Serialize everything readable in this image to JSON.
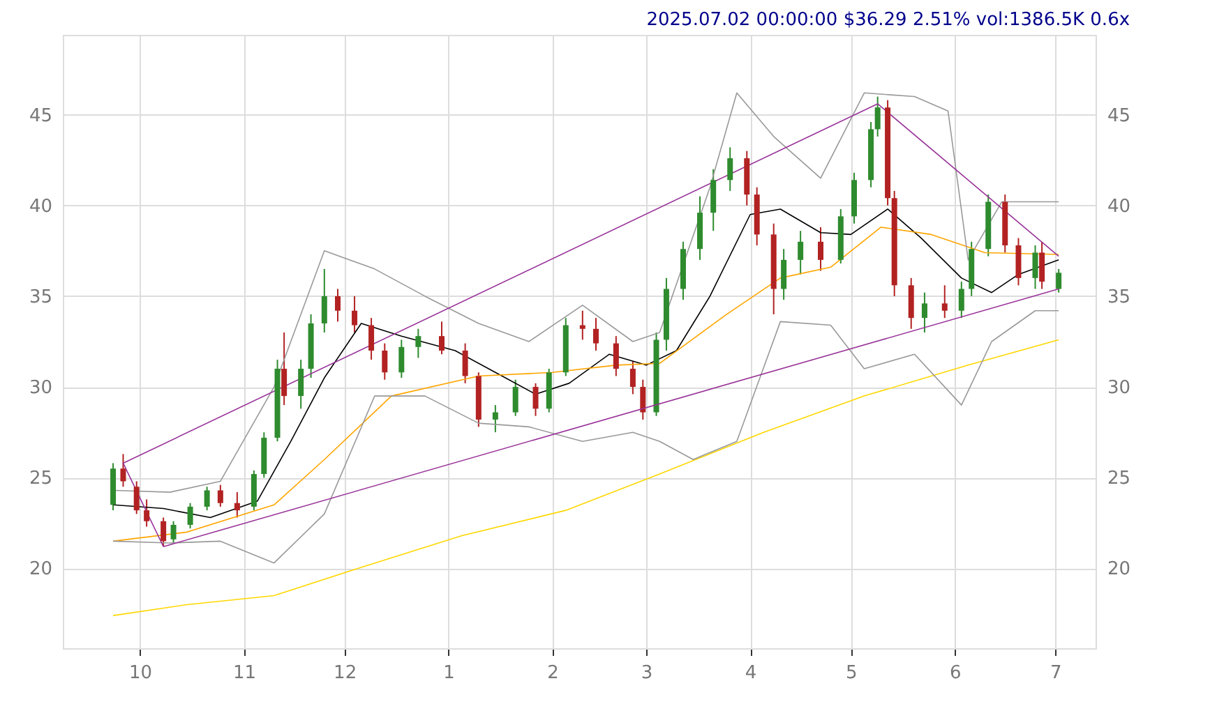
{
  "chart_data": {
    "type": "candlestick",
    "title": "2025.07.02 00:00:00 $36.29 2.51% vol:1386.5K 0.6x",
    "x": [
      "2024-09-23",
      "2024-09-26",
      "2024-09-30",
      "2024-10-03",
      "2024-10-08",
      "2024-10-11",
      "2024-10-16",
      "2024-10-21",
      "2024-10-25",
      "2024-10-30",
      "2024-11-04",
      "2024-11-07",
      "2024-11-11",
      "2024-11-13",
      "2024-11-18",
      "2024-11-21",
      "2024-11-25",
      "2024-11-29",
      "2024-12-04",
      "2024-12-09",
      "2024-12-13",
      "2024-12-18",
      "2024-12-23",
      "2024-12-30",
      "2025-01-06",
      "2025-01-10",
      "2025-01-15",
      "2025-01-21",
      "2025-01-27",
      "2025-01-31",
      "2025-02-05",
      "2025-02-10",
      "2025-02-14",
      "2025-02-20",
      "2025-02-25",
      "2025-02-28",
      "2025-03-04",
      "2025-03-07",
      "2025-03-12",
      "2025-03-17",
      "2025-03-21",
      "2025-03-26",
      "2025-03-31",
      "2025-04-03",
      "2025-04-08",
      "2025-04-11",
      "2025-04-16",
      "2025-04-22",
      "2025-04-28",
      "2025-05-02",
      "2025-05-07",
      "2025-05-09",
      "2025-05-12",
      "2025-05-14",
      "2025-05-19",
      "2025-05-23",
      "2025-05-29",
      "2025-06-03",
      "2025-06-06",
      "2025-06-11",
      "2025-06-16",
      "2025-06-20",
      "2025-06-25",
      "2025-06-27",
      "2025-07-02"
    ],
    "ohlc": [
      [
        23.5,
        25.8,
        23.2,
        25.5
      ],
      [
        25.5,
        26.3,
        24.5,
        24.8
      ],
      [
        24.5,
        24.8,
        23.0,
        23.2
      ],
      [
        23.2,
        23.8,
        22.3,
        22.6
      ],
      [
        22.6,
        22.8,
        21.2,
        21.5
      ],
      [
        21.6,
        22.6,
        21.4,
        22.4
      ],
      [
        22.4,
        23.6,
        22.2,
        23.4
      ],
      [
        23.4,
        24.5,
        23.2,
        24.3
      ],
      [
        24.3,
        24.6,
        23.4,
        23.6
      ],
      [
        23.6,
        24.2,
        22.8,
        23.2
      ],
      [
        23.4,
        25.4,
        23.2,
        25.2
      ],
      [
        25.2,
        27.5,
        25.0,
        27.2
      ],
      [
        27.2,
        31.5,
        27.0,
        31.0
      ],
      [
        31.0,
        33.0,
        29.0,
        29.5
      ],
      [
        29.5,
        31.5,
        28.8,
        31.0
      ],
      [
        31.0,
        34.0,
        30.5,
        33.5
      ],
      [
        33.5,
        36.5,
        33.0,
        35.0
      ],
      [
        35.0,
        35.4,
        33.6,
        34.2
      ],
      [
        34.2,
        35.0,
        33.0,
        33.4
      ],
      [
        33.4,
        33.8,
        31.5,
        32.0
      ],
      [
        32.0,
        32.4,
        30.4,
        30.8
      ],
      [
        30.8,
        32.6,
        30.5,
        32.2
      ],
      [
        32.2,
        33.2,
        31.6,
        32.8
      ],
      [
        32.8,
        33.6,
        31.8,
        32.0
      ],
      [
        32.0,
        32.4,
        30.2,
        30.6
      ],
      [
        30.6,
        30.8,
        27.8,
        28.2
      ],
      [
        28.2,
        29.0,
        27.5,
        28.6
      ],
      [
        28.6,
        30.4,
        28.4,
        30.0
      ],
      [
        30.0,
        30.2,
        28.4,
        28.8
      ],
      [
        28.8,
        31.0,
        28.6,
        30.8
      ],
      [
        30.8,
        33.8,
        30.6,
        33.4
      ],
      [
        33.4,
        34.2,
        32.6,
        33.2
      ],
      [
        33.2,
        33.8,
        32.0,
        32.4
      ],
      [
        32.4,
        32.8,
        30.6,
        31.0
      ],
      [
        31.0,
        31.4,
        29.6,
        30.0
      ],
      [
        30.0,
        30.4,
        28.2,
        28.6
      ],
      [
        28.6,
        33.0,
        28.4,
        32.6
      ],
      [
        32.6,
        36.0,
        32.0,
        35.4
      ],
      [
        35.4,
        38.0,
        34.8,
        37.6
      ],
      [
        37.6,
        40.5,
        37.0,
        39.6
      ],
      [
        39.6,
        42.0,
        38.6,
        41.4
      ],
      [
        41.4,
        43.2,
        40.8,
        42.6
      ],
      [
        42.6,
        43.0,
        40.0,
        40.6
      ],
      [
        40.6,
        41.0,
        37.8,
        38.4
      ],
      [
        38.4,
        39.0,
        34.0,
        35.4
      ],
      [
        35.4,
        37.6,
        34.8,
        37.0
      ],
      [
        37.0,
        38.6,
        36.2,
        38.0
      ],
      [
        38.0,
        38.8,
        36.4,
        37.0
      ],
      [
        37.0,
        39.8,
        36.8,
        39.4
      ],
      [
        39.4,
        41.8,
        39.0,
        41.4
      ],
      [
        41.4,
        44.6,
        41.0,
        44.2
      ],
      [
        44.2,
        46.0,
        43.8,
        45.4
      ],
      [
        45.4,
        45.8,
        40.0,
        40.4
      ],
      [
        40.4,
        40.8,
        35.0,
        35.6
      ],
      [
        35.6,
        36.0,
        33.2,
        33.8
      ],
      [
        33.8,
        35.2,
        33.0,
        34.6
      ],
      [
        34.6,
        35.6,
        33.8,
        34.2
      ],
      [
        34.2,
        35.8,
        33.8,
        35.4
      ],
      [
        35.4,
        38.0,
        35.0,
        37.6
      ],
      [
        37.6,
        40.6,
        37.2,
        40.2
      ],
      [
        40.2,
        40.6,
        37.4,
        37.8
      ],
      [
        37.8,
        38.2,
        35.6,
        36.0
      ],
      [
        36.0,
        37.8,
        35.4,
        37.4
      ],
      [
        37.4,
        38.0,
        35.4,
        35.8
      ],
      [
        35.4,
        36.5,
        35.2,
        36.29
      ]
    ],
    "series": [
      {
        "type": "line",
        "color": "#000000",
        "x": [
          "2024-09-23",
          "2024-10-08",
          "2024-10-22",
          "2024-11-05",
          "2024-11-15",
          "2024-11-25",
          "2024-12-06",
          "2024-12-18",
          "2025-01-03",
          "2025-01-15",
          "2025-01-27",
          "2025-02-06",
          "2025-02-18",
          "2025-03-01",
          "2025-03-10",
          "2025-03-20",
          "2025-04-01",
          "2025-04-10",
          "2025-04-22",
          "2025-05-01",
          "2025-05-12",
          "2025-05-22",
          "2025-06-03",
          "2025-06-12",
          "2025-06-20",
          "2025-07-02"
        ],
        "values": [
          23.5,
          23.3,
          22.8,
          23.7,
          27,
          30.5,
          33.5,
          32.8,
          32,
          30.8,
          29.6,
          30.2,
          31.8,
          31.2,
          32,
          35,
          39.5,
          39.8,
          38.5,
          38.4,
          39.8,
          38.2,
          36,
          35.2,
          36.2,
          37.0
        ]
      },
      {
        "type": "line",
        "color": "#ffa500",
        "x": [
          "2024-09-23",
          "2024-10-15",
          "2024-11-10",
          "2024-11-25",
          "2024-12-15",
          "2025-01-10",
          "2025-02-01",
          "2025-02-20",
          "2025-03-05",
          "2025-03-25",
          "2025-04-10",
          "2025-04-25",
          "2025-05-10",
          "2025-05-25",
          "2025-06-10",
          "2025-07-02"
        ],
        "values": [
          21.5,
          22,
          23.5,
          26,
          29.5,
          30.6,
          30.8,
          31.2,
          31.3,
          34,
          36,
          36.6,
          38.8,
          38.4,
          37.4,
          37.3
        ]
      },
      {
        "type": "line",
        "color": "#ffd700",
        "x": [
          "2024-09-23",
          "2024-10-15",
          "2024-11-10",
          "2024-12-05",
          "2025-01-05",
          "2025-02-05",
          "2025-03-05",
          "2025-04-05",
          "2025-05-05",
          "2025-06-05",
          "2025-07-02"
        ],
        "values": [
          17.4,
          18,
          18.5,
          20,
          21.8,
          23.2,
          25.2,
          27.5,
          29.5,
          31.2,
          32.6
        ]
      },
      {
        "type": "line",
        "color": "#999999",
        "x": [
          "2024-09-23",
          "2024-10-10",
          "2024-10-25",
          "2024-11-10",
          "2024-11-25",
          "2024-12-10",
          "2024-12-25",
          "2025-01-10",
          "2025-01-25",
          "2025-02-10",
          "2025-02-25",
          "2025-03-05",
          "2025-03-20",
          "2025-03-28",
          "2025-04-08",
          "2025-04-22",
          "2025-05-05",
          "2025-05-20",
          "2025-05-30",
          "2025-06-05",
          "2025-06-15",
          "2025-07-02"
        ],
        "values": [
          24.3,
          24.2,
          24.8,
          30,
          37.5,
          36.5,
          35,
          33.5,
          32.5,
          34.5,
          32.5,
          33,
          41,
          46.2,
          43.8,
          41.5,
          46.2,
          46,
          45.2,
          37,
          40.2,
          40.2
        ]
      },
      {
        "type": "line",
        "color": "#999999",
        "x": [
          "2024-09-23",
          "2024-10-10",
          "2024-10-25",
          "2024-11-10",
          "2024-11-25",
          "2024-12-10",
          "2024-12-25",
          "2025-01-10",
          "2025-01-25",
          "2025-02-10",
          "2025-02-25",
          "2025-03-05",
          "2025-03-15",
          "2025-03-28",
          "2025-04-10",
          "2025-04-25",
          "2025-05-05",
          "2025-05-20",
          "2025-06-03",
          "2025-06-12",
          "2025-06-25",
          "2025-07-02"
        ],
        "values": [
          21.5,
          21.4,
          21.5,
          20.3,
          23,
          29.5,
          29.5,
          28,
          27.8,
          27,
          27.5,
          27.0,
          26.0,
          27,
          33.6,
          33.4,
          31,
          31.8,
          29,
          32.5,
          34.2,
          34.2
        ]
      },
      {
        "type": "line",
        "color": "#993399",
        "x": [
          "2024-10-08",
          "2024-09-26",
          "2025-05-09",
          "2025-07-02"
        ],
        "values": [
          21.2,
          25.8,
          45.6,
          37.2
        ]
      },
      {
        "type": "line",
        "color": "#993399",
        "axis": "y2",
        "x": [
          "2024-10-08",
          "2025-07-02"
        ],
        "values": [
          21.2,
          35.4
        ]
      }
    ],
    "xlim": [
      "2024-09-08",
      "2025-07-13"
    ],
    "xticks": [
      {
        "value": "2024-10-01",
        "label": "10"
      },
      {
        "value": "2024-11-01",
        "label": "11"
      },
      {
        "value": "2024-12-01",
        "label": "12"
      },
      {
        "value": "2025-01-01",
        "label": "1"
      },
      {
        "value": "2025-02-01",
        "label": "2"
      },
      {
        "value": "2025-03-01",
        "label": "3"
      },
      {
        "value": "2025-04-01",
        "label": "4"
      },
      {
        "value": "2025-05-01",
        "label": "5"
      },
      {
        "value": "2025-06-01",
        "label": "6"
      },
      {
        "value": "2025-07-01",
        "label": "7"
      }
    ],
    "ylim": [
      15.6,
      49.4
    ],
    "yticks": [
      20,
      25,
      30,
      35,
      40,
      45
    ],
    "y2lim": [
      15.6,
      49.4
    ],
    "y2ticks": [
      20,
      25,
      30,
      35,
      40,
      45
    ],
    "grid": true,
    "line_style": "solid"
  }
}
